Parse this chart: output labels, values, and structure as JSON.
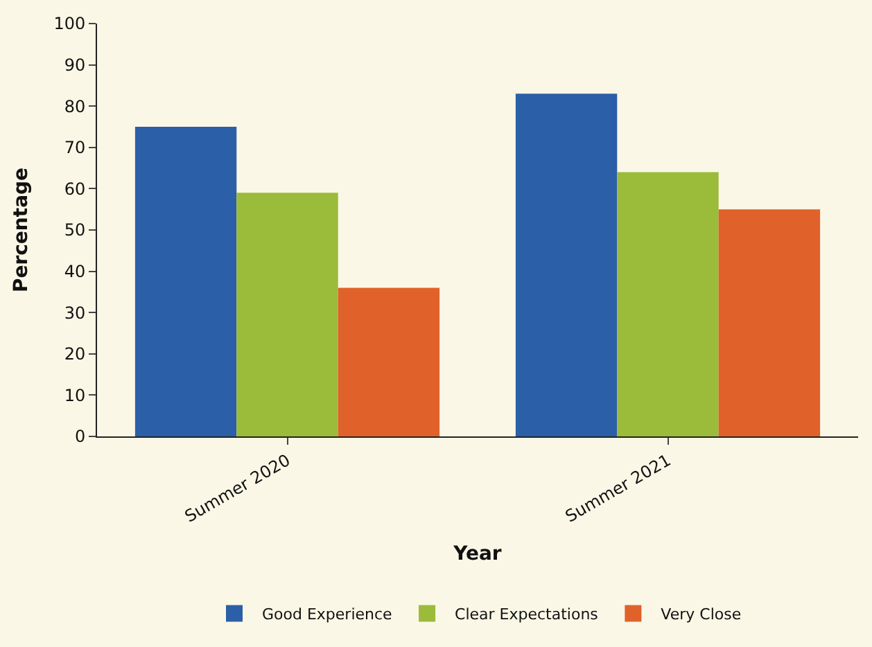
{
  "chart_data": {
    "type": "bar",
    "xlabel": "Year",
    "ylabel": "Percentage",
    "categories": [
      "Summer 2020",
      "Summer 2021"
    ],
    "series": [
      {
        "name": "Good Experience",
        "color": "#2b5fa8",
        "values": [
          75,
          83
        ]
      },
      {
        "name": "Clear Expectations",
        "color": "#9bbb3a",
        "values": [
          59,
          64
        ]
      },
      {
        "name": "Very Close",
        "color": "#e0622a",
        "values": [
          36,
          55
        ]
      }
    ],
    "ylim": [
      0,
      100
    ],
    "yticks": [
      0,
      10,
      20,
      30,
      40,
      50,
      60,
      70,
      80,
      90,
      100
    ],
    "grid": false,
    "legend": "bottom"
  }
}
